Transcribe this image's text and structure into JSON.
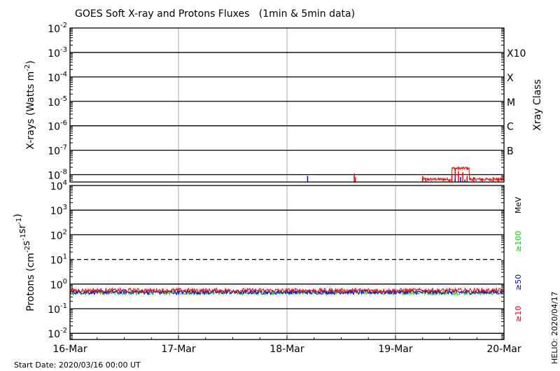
{
  "chart_data": {
    "type": "line",
    "title": "GOES Soft X-ray and Protons Fluxes   (1min & 5min data)",
    "start_date": "Start Date: 2020/03/16 00:00 UT",
    "helio_stamp": "HELIO: 2020/04/17",
    "x_tick_labels": [
      "16-Mar",
      "17-Mar",
      "18-Mar",
      "19-Mar",
      "20-Mar"
    ],
    "x_range_days": [
      0,
      4
    ],
    "xray_panel": {
      "ylabel_main": "X-rays (Watts m",
      "ylabel_exp": "-2",
      "ylabel_close": ")",
      "ylim_exp": [
        -8.3,
        -2
      ],
      "y_tick_exps": [
        -2,
        -3,
        -4,
        -5,
        -6,
        -7,
        -8
      ],
      "right_label": "Xray Class",
      "class_labels": [
        {
          "label": "X10",
          "exp": -3
        },
        {
          "label": "X",
          "exp": -4
        },
        {
          "label": "M",
          "exp": -5
        },
        {
          "label": "C",
          "exp": -6
        },
        {
          "label": "B",
          "exp": -7
        }
      ],
      "series": [
        {
          "color": "#ff0000",
          "spikes": [
            {
              "day": 2.62,
              "exp": -7.95
            },
            {
              "day": 2.63,
              "exp": -8.1
            },
            {
              "day": 3.25,
              "exp": -8.05
            },
            {
              "day": 3.28,
              "exp": -8.2
            },
            {
              "day": 3.5,
              "exp": -8.2
            },
            {
              "day": 3.52,
              "exp": -8.0
            },
            {
              "day": 3.55,
              "exp": -7.75
            },
            {
              "day": 3.58,
              "exp": -7.85
            },
            {
              "day": 3.62,
              "exp": -7.9
            },
            {
              "day": 3.66,
              "exp": -8.05
            },
            {
              "day": 3.72,
              "exp": -8.1
            },
            {
              "day": 3.8,
              "exp": -8.15
            },
            {
              "day": 3.9,
              "exp": -8.1
            },
            {
              "day": 3.95,
              "exp": -8.15
            }
          ]
        },
        {
          "color": "#0000ff",
          "spikes": [
            {
              "day": 2.19,
              "exp": -8.05
            },
            {
              "day": 3.55,
              "exp": -8.15
            },
            {
              "day": 3.6,
              "exp": -8.1
            },
            {
              "day": 3.64,
              "exp": -8.2
            }
          ]
        }
      ]
    },
    "proton_panel": {
      "ylabel_main": "Protons (cm",
      "ylabel_parts": [
        {
          "text": "Protons (cm",
          "exp": ""
        },
        {
          "text": "",
          "exp": "-2"
        },
        {
          "text": "s",
          "exp": "-1"
        },
        {
          "text": "sr",
          "exp": "-1"
        },
        {
          "text": ")",
          "exp": ""
        }
      ],
      "ylim_exp": [
        -2.25,
        4
      ],
      "y_tick_exps": [
        4,
        3,
        2,
        1,
        0,
        -1,
        -2
      ],
      "threshold_exp": 1,
      "energy_unit": "MeV",
      "energy_labels": [
        {
          "label": "≥100",
          "color": "#00dd00"
        },
        {
          "label": "≥50",
          "color": "#0000ff"
        },
        {
          "label": "≥10",
          "color": "#ff0000"
        }
      ],
      "series": [
        {
          "name": "≥10",
          "color": "#ff0000",
          "base_value": 0.55
        },
        {
          "name": "≥50",
          "color": "#0000ff",
          "base_value": 0.47
        },
        {
          "name": "≥100",
          "color": "#00dd00",
          "base_value": 0.45
        }
      ]
    }
  }
}
